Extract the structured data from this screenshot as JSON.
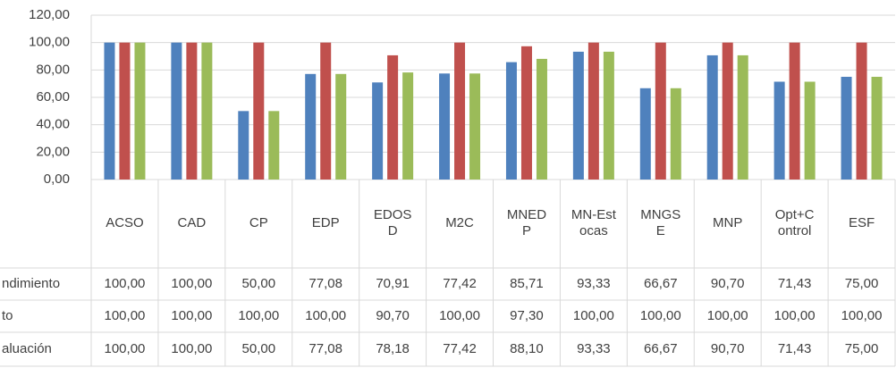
{
  "chart_data": {
    "type": "bar",
    "categories": [
      "ACSO",
      "CAD",
      "CP",
      "EDP",
      "EDOSD",
      "M2C",
      "MNEDP",
      "MN-Estocas",
      "MNGSE",
      "MNP",
      "Opt+Control",
      "ESF"
    ],
    "series": [
      {
        "name": "ndimiento",
        "color": "#4f81bd",
        "values": [
          100,
          100,
          50,
          77.08,
          70.91,
          77.42,
          85.71,
          93.33,
          66.67,
          90.7,
          71.43,
          75
        ],
        "value_labels": [
          "100,00",
          "100,00",
          "50,00",
          "77,08",
          "70,91",
          "77,42",
          "85,71",
          "93,33",
          "66,67",
          "90,70",
          "71,43",
          "75,00"
        ]
      },
      {
        "name": "to",
        "color": "#c0504d",
        "values": [
          100,
          100,
          100,
          100,
          90.7,
          100,
          97.3,
          100,
          100,
          100,
          100,
          100
        ],
        "value_labels": [
          "100,00",
          "100,00",
          "100,00",
          "100,00",
          "90,70",
          "100,00",
          "97,30",
          "100,00",
          "100,00",
          "100,00",
          "100,00",
          "100,00"
        ]
      },
      {
        "name": "aluación",
        "color": "#9bbb59",
        "values": [
          100,
          100,
          50,
          77.08,
          78.18,
          77.42,
          88.1,
          93.33,
          66.67,
          90.7,
          71.43,
          75
        ],
        "value_labels": [
          "100,00",
          "100,00",
          "50,00",
          "77,08",
          "78,18",
          "77,42",
          "88,10",
          "93,33",
          "66,67",
          "90,70",
          "71,43",
          "75,00"
        ]
      }
    ],
    "ylim": [
      0,
      120
    ],
    "yticks": [
      {
        "value": 0,
        "label": "0,00"
      },
      {
        "value": 20,
        "label": "20,00"
      },
      {
        "value": 40,
        "label": "40,00"
      },
      {
        "value": 60,
        "label": "60,00"
      },
      {
        "value": 80,
        "label": "80,00"
      },
      {
        "value": 100,
        "label": "100,00"
      },
      {
        "value": 120,
        "label": "120,00"
      }
    ],
    "grid": true
  }
}
